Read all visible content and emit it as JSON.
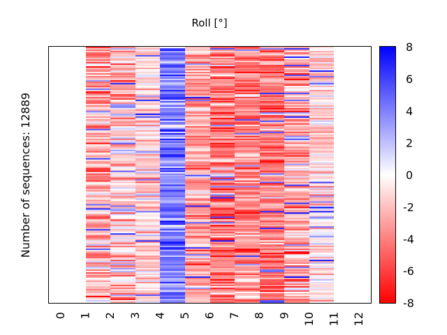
{
  "chart_data": {
    "type": "heatmap",
    "title": "Roll [°]",
    "ylabel": "Number of sequences: 12889",
    "xlabel": "",
    "n_sequences": 12889,
    "x_ticks": [
      "0",
      "1",
      "2",
      "3",
      "4",
      "5",
      "6",
      "7",
      "8",
      "9",
      "10",
      "11",
      "12"
    ],
    "xlim": [
      0,
      12
    ],
    "columns": [
      {
        "x_start": 1,
        "x_end": 2,
        "mean": -2.5,
        "spread": 2.2
      },
      {
        "x_start": 2,
        "x_end": 3,
        "mean": -2.3,
        "spread": 2.4
      },
      {
        "x_start": 3,
        "x_end": 4,
        "mean": -1.4,
        "spread": 1.6
      },
      {
        "x_start": 4,
        "x_end": 5,
        "mean": 4.2,
        "spread": 1.8
      },
      {
        "x_start": 5,
        "x_end": 6,
        "mean": -3.0,
        "spread": 1.6
      },
      {
        "x_start": 6,
        "x_end": 7,
        "mean": -4.2,
        "spread": 2.2
      },
      {
        "x_start": 7,
        "x_end": 8,
        "mean": -3.8,
        "spread": 1.8
      },
      {
        "x_start": 8,
        "x_end": 9,
        "mean": -4.0,
        "spread": 1.6
      },
      {
        "x_start": 9,
        "x_end": 10,
        "mean": -2.8,
        "spread": 2.0
      },
      {
        "x_start": 10,
        "x_end": 11,
        "mean": -1.2,
        "spread": 1.6
      }
    ],
    "colorbar": {
      "min": -8,
      "max": 8,
      "ticks": [
        "8",
        "6",
        "4",
        "2",
        "0",
        "-2",
        "-4",
        "-6",
        "-8"
      ],
      "colormap": "bwr_reversed",
      "high_color": "#0000ff",
      "mid_color": "#ffffff",
      "low_color": "#ff0000"
    }
  }
}
